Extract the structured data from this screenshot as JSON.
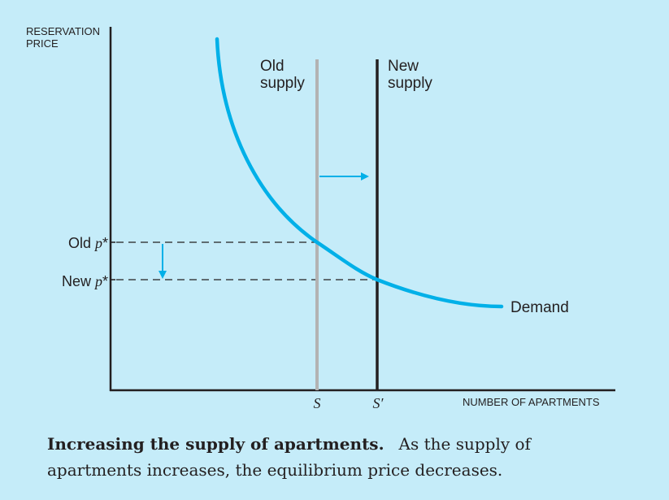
{
  "colors": {
    "background": "#c5ecf9",
    "demand": "#00b0e8",
    "old_supply": "#b3b3b3",
    "new_supply": "#231f20",
    "arrow": "#00b0e8",
    "text": "#231f20"
  },
  "axes": {
    "y_label_line1": "RESERVATION",
    "y_label_line2": "PRICE",
    "x_label": "NUMBER OF APARTMENTS"
  },
  "curves": {
    "old_supply_line1": "Old",
    "old_supply_line2": "supply",
    "new_supply_line1": "New",
    "new_supply_line2": "supply",
    "demand": "Demand"
  },
  "ticks": {
    "old_p_label": "Old p*",
    "new_p_label": "New p*",
    "s_label": "S",
    "s_prime_label": "S′"
  },
  "caption": {
    "title": "Increasing the supply of apartments.",
    "text": "As the supply of apartments increases, the equilibrium price decreases."
  }
}
